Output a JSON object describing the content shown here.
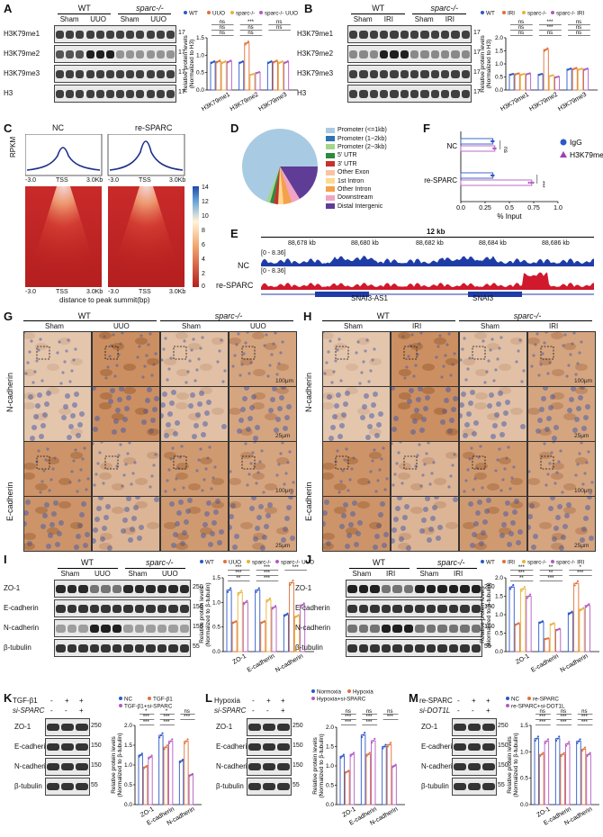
{
  "panels": {
    "A": {
      "label": "A",
      "groups": [
        "WT",
        "sparc-/-"
      ],
      "conds": [
        "Sham",
        "UUO",
        "Sham",
        "UUO"
      ],
      "rows": [
        "H3K79me1",
        "H3K79me2",
        "H3K79me3",
        "H3"
      ],
      "mw": [
        "17",
        "17",
        "17",
        "17"
      ]
    },
    "A_chart": {
      "legend": [
        "WT",
        "UUO",
        "sparc-/-",
        "sparc-/- UUO"
      ],
      "ylabel": "Relative protein levels (Normalized to H3)",
      "categories": [
        "H3K79me1",
        "H3K79me2",
        "H3K79me3"
      ],
      "yticks": [
        "0.0",
        "0.5",
        "1.0",
        "1.5"
      ],
      "sig": {
        "me1": [
          "ns",
          "ns",
          "ns"
        ],
        "me2": [
          "***",
          "ns"
        ],
        "me3": [
          "ns",
          "ns",
          "ns"
        ]
      }
    },
    "B": {
      "label": "B",
      "groups": [
        "WT",
        "sparc-/-"
      ],
      "conds": [
        "Sham",
        "IRI",
        "Sham",
        "IRI"
      ],
      "rows": [
        "H3K79me1",
        "H3K79me2",
        "H3K79me3",
        "H3"
      ],
      "mw": [
        "17",
        "17",
        "17",
        "17"
      ]
    },
    "B_chart": {
      "legend": [
        "WT",
        "IRI",
        "sparc-/-",
        "sparc-/- IRI"
      ],
      "ylabel": "Relative protein levels (Normalized to H3)",
      "categories": [
        "H3K79me1",
        "H3K79me2",
        "H3K79me3"
      ],
      "yticks": [
        "0.0",
        "0.5",
        "1.0",
        "1.5",
        "2.0"
      ],
      "sig": {
        "me1": [
          "ns",
          "ns",
          "ns"
        ],
        "me2": [
          "***",
          "***",
          "ns"
        ],
        "me3": [
          "ns",
          "ns",
          "ns"
        ]
      }
    },
    "C": {
      "label": "C",
      "cols": [
        "NC",
        "re-SPARC"
      ],
      "ylabel": "RPKM",
      "xticks": [
        "-3.0",
        "TSS",
        "3.0Kb"
      ],
      "scale": [
        "14",
        "12",
        "10",
        "8",
        "6",
        "4",
        "2",
        "0"
      ],
      "xlabel": "distance to peak summit(bp)"
    },
    "D": {
      "label": "D",
      "legend": [
        "Promoter (<=1kb)",
        "Promoter (1~2kb)",
        "Promoter (2~3kb)",
        "5' UTR",
        "3' UTR",
        "Other Exon",
        "1st Intron",
        "Other Intron",
        "Downstream",
        "Distal Intergenic"
      ]
    },
    "F": {
      "label": "F",
      "rows": [
        "NC",
        "re-SPARC"
      ],
      "legend": [
        "IgG",
        "H3K79me2"
      ],
      "xticks": [
        "0.0",
        "0.25",
        "0.5",
        "0.75",
        "1.0"
      ],
      "xlabel": "% Input",
      "sig": [
        "ns",
        "***"
      ]
    },
    "E": {
      "label": "E",
      "scale": "12 kb",
      "coords": [
        "88,678 kb",
        "88,680 kb",
        "88,682 kb",
        "88,684 kb",
        "88,686 kb"
      ],
      "range": "[0 - 8.36]",
      "tracks": [
        "NC",
        "re-SPARC"
      ],
      "genes": [
        "SNAI3-AS1",
        "SNAI3"
      ]
    },
    "G": {
      "label": "G",
      "groups": [
        "WT",
        "sparc-/-"
      ],
      "conds": [
        "Sham",
        "UUO",
        "Sham",
        "UUO"
      ],
      "rows": [
        "N-cadherin",
        "E-cadherin"
      ],
      "scale1": "100μm",
      "scale2": "25μm"
    },
    "H": {
      "label": "H",
      "groups": [
        "WT",
        "sparc-/-"
      ],
      "conds": [
        "Sham",
        "IRI",
        "Sham",
        "IRI"
      ],
      "rows": [
        "N-cadherin",
        "E-cadherin"
      ],
      "scale1": "100μm",
      "scale2": "25μm"
    },
    "I": {
      "label": "I",
      "groups": [
        "WT",
        "sparc-/-"
      ],
      "conds": [
        "Sham",
        "UUO",
        "Sham",
        "UUO"
      ],
      "rows": [
        "ZO-1",
        "E-cadherin",
        "N-cadherin",
        "β-tubulin"
      ],
      "mw": [
        "250",
        "150",
        "150",
        "55"
      ]
    },
    "I_chart": {
      "legend": [
        "WT",
        "UUO",
        "sparc-/-",
        "sparc-/- UUO"
      ],
      "ylabel": "Relative protein levels (Normalized to β-tubulin)",
      "categories": [
        "ZO-1",
        "E-cadherin",
        "N-cadherin"
      ],
      "yticks": [
        "0.0",
        "0.5",
        "1.0",
        "1.5"
      ],
      "sig": [
        "***",
        "***",
        "**",
        "***",
        "***",
        "***",
        "***"
      ]
    },
    "J": {
      "label": "J",
      "groups": [
        "WT",
        "sparc-/-"
      ],
      "conds": [
        "Sham",
        "IRI",
        "Sham",
        "IRI"
      ],
      "rows": [
        "ZO-1",
        "E-cadherin",
        "N-cadherin",
        "β-tubulin"
      ],
      "mw": [
        "250",
        "150",
        "150",
        "55"
      ]
    },
    "J_chart": {
      "legend": [
        "WT",
        "IRI",
        "sparc-/-",
        "sparc-/- IRI"
      ],
      "ylabel": "Relative protein levels (Normalized to β-tubulin)",
      "categories": [
        "ZO-1",
        "E-cadherin",
        "N-cadherin"
      ],
      "yticks": [
        "0.0",
        "0.5",
        "1.0",
        "1.5",
        "2.0"
      ],
      "sig": [
        "***",
        "***",
        "**",
        "**",
        "**",
        "***",
        "*",
        "***"
      ]
    },
    "K": {
      "label": "K",
      "treat": [
        "TGF-β1",
        "si-SPARC"
      ],
      "signs": [
        [
          "-",
          "+",
          "+"
        ],
        [
          "-",
          "-",
          "+"
        ]
      ],
      "rows": [
        "ZO-1",
        "E-cadherin",
        "N-cadherin",
        "β-tubulin"
      ],
      "mw": [
        "250",
        "150",
        "150",
        "55"
      ]
    },
    "K_chart": {
      "legend": [
        "NC",
        "TGF-β1",
        "TGF-β1+si-SPARC"
      ],
      "ylabel": "Relative protein levels (Normalized to β-tubulin)",
      "categories": [
        "ZO-1",
        "E-cadherin",
        "N-cadherin"
      ],
      "yticks": [
        "0.0",
        "0.5",
        "1.0",
        "1.5",
        "2.0"
      ],
      "sig": [
        "*",
        "***",
        "***",
        "*",
        "***",
        "***",
        "ns",
        "***"
      ]
    },
    "L": {
      "label": "L",
      "treat": [
        "Hypoxia",
        "si-SPARC"
      ],
      "signs": [
        [
          "-",
          "+",
          "+"
        ],
        [
          "-",
          "-",
          "+"
        ]
      ],
      "rows": [
        "ZO-1",
        "E-cadherin",
        "N-cadherin",
        "β-tubulin"
      ],
      "mw": [
        "250",
        "150",
        "150",
        "55"
      ]
    },
    "L_chart": {
      "legend": [
        "Normoxia",
        "Hypoxia",
        "Hypoxia+si-SPARC"
      ],
      "ylabel": "Relative protein levels (Normalized to β-tubulin)",
      "categories": [
        "ZO-1",
        "E-cadherin",
        "N-cadherin"
      ],
      "yticks": [
        "0.0",
        "0.5",
        "1.0",
        "1.5",
        "2.0"
      ],
      "sig": [
        "ns",
        "***",
        "***",
        "ns",
        "***",
        "***",
        "ns",
        "***"
      ]
    },
    "M": {
      "label": "M",
      "treat": [
        "re-SPARC",
        "si-DOT1L"
      ],
      "signs": [
        [
          "-",
          "+",
          "+"
        ],
        [
          "-",
          "-",
          "+"
        ]
      ],
      "rows": [
        "ZO-1",
        "E-cadherin",
        "N-cadherin",
        "β-tubulin"
      ],
      "mw": [
        "250",
        "150",
        "150",
        "55"
      ]
    },
    "M_chart": {
      "legend": [
        "NC",
        "re-SPARC",
        "re-SPARC+si-DOT1L"
      ],
      "ylabel": "Relative protein levels (Normalized to β-tubulin)",
      "categories": [
        "ZO-1",
        "E-cadherin",
        "N-cadherin"
      ],
      "yticks": [
        "0.0",
        "0.5",
        "1.0",
        "1.5"
      ],
      "sig": [
        "ns",
        "***",
        "***",
        "ns",
        "***",
        "***",
        "ns",
        "***",
        "***"
      ]
    }
  },
  "chart_data": [
    {
      "type": "bar",
      "id": "A",
      "categories": [
        "H3K79me1",
        "H3K79me2",
        "H3K79me3"
      ],
      "ylim": [
        0,
        1.5
      ],
      "series": [
        {
          "name": "WT",
          "values": [
            0.8,
            0.8,
            0.8
          ]
        },
        {
          "name": "UUO",
          "values": [
            0.82,
            1.35,
            0.82
          ]
        },
        {
          "name": "sparc-/-",
          "values": [
            0.8,
            0.45,
            0.8
          ]
        },
        {
          "name": "sparc-/- UUO",
          "values": [
            0.82,
            0.5,
            0.8
          ]
        }
      ]
    },
    {
      "type": "bar",
      "id": "B",
      "categories": [
        "H3K79me1",
        "H3K79me2",
        "H3K79me3"
      ],
      "ylim": [
        0,
        2.0
      ],
      "series": [
        {
          "name": "WT",
          "values": [
            0.6,
            0.6,
            0.8
          ]
        },
        {
          "name": "IRI",
          "values": [
            0.62,
            1.55,
            0.82
          ]
        },
        {
          "name": "sparc-/-",
          "values": [
            0.6,
            0.55,
            0.8
          ]
        },
        {
          "name": "sparc-/- IRI",
          "values": [
            0.62,
            0.5,
            0.8
          ]
        }
      ]
    },
    {
      "type": "bar",
      "id": "F",
      "categories": [
        "NC",
        "re-SPARC"
      ],
      "xlim": [
        0,
        1.0
      ],
      "series": [
        {
          "name": "IgG",
          "values": [
            0.33,
            0.33
          ]
        },
        {
          "name": "H3K79me2",
          "values": [
            0.35,
            0.73
          ]
        }
      ]
    },
    {
      "type": "bar",
      "id": "I",
      "categories": [
        "ZO-1",
        "E-cadherin",
        "N-cadherin"
      ],
      "ylim": [
        0,
        1.5
      ],
      "series": [
        {
          "name": "WT",
          "values": [
            1.25,
            1.25,
            0.75
          ]
        },
        {
          "name": "UUO",
          "values": [
            0.6,
            0.6,
            1.4
          ]
        },
        {
          "name": "sparc-/-",
          "values": [
            1.2,
            1.05,
            0.72
          ]
        },
        {
          "name": "sparc-/- UUO",
          "values": [
            1.0,
            0.9,
            0.95
          ]
        }
      ]
    },
    {
      "type": "bar",
      "id": "J",
      "categories": [
        "ZO-1",
        "E-cadherin",
        "N-cadherin"
      ],
      "ylim": [
        0,
        2.0
      ],
      "series": [
        {
          "name": "WT",
          "values": [
            1.75,
            0.8,
            1.05
          ]
        },
        {
          "name": "IRI",
          "values": [
            0.75,
            0.35,
            1.85
          ]
        },
        {
          "name": "sparc-/-",
          "values": [
            1.7,
            0.75,
            1.15
          ]
        },
        {
          "name": "sparc-/- IRI",
          "values": [
            1.5,
            0.6,
            1.25
          ]
        }
      ]
    },
    {
      "type": "bar",
      "id": "K",
      "categories": [
        "ZO-1",
        "E-cadherin",
        "N-cadherin"
      ],
      "ylim": [
        0,
        2.0
      ],
      "series": [
        {
          "name": "NC",
          "values": [
            1.25,
            1.75,
            1.1
          ]
        },
        {
          "name": "TGF-β1",
          "values": [
            0.95,
            1.45,
            1.6
          ]
        },
        {
          "name": "TGF-β1+si-SPARC",
          "values": [
            1.2,
            1.6,
            0.75
          ]
        }
      ]
    },
    {
      "type": "bar",
      "id": "L",
      "categories": [
        "ZO-1",
        "E-cadherin",
        "N-cadherin"
      ],
      "ylim": [
        0,
        2.0
      ],
      "series": [
        {
          "name": "Normoxia",
          "values": [
            1.25,
            1.8,
            1.5
          ]
        },
        {
          "name": "Hypoxia",
          "values": [
            0.85,
            1.3,
            1.55
          ]
        },
        {
          "name": "Hypoxia+si-SPARC",
          "values": [
            1.3,
            1.65,
            1.0
          ]
        }
      ]
    },
    {
      "type": "bar",
      "id": "M",
      "categories": [
        "ZO-1",
        "E-cadherin",
        "N-cadherin"
      ],
      "ylim": [
        0,
        1.5
      ],
      "series": [
        {
          "name": "NC",
          "values": [
            1.25,
            1.25,
            1.2
          ]
        },
        {
          "name": "re-SPARC",
          "values": [
            0.95,
            0.95,
            1.05
          ]
        },
        {
          "name": "re-SPARC+si-DOT1L",
          "values": [
            1.2,
            1.15,
            0.95
          ]
        }
      ]
    }
  ]
}
